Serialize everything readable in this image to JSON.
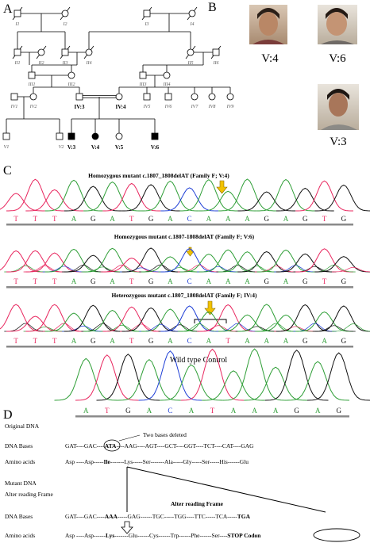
{
  "panel_labels": [
    "A",
    "B",
    "C",
    "D"
  ],
  "pedigree": {
    "generation_1": [
      "I1",
      "I2",
      "I3",
      "I4"
    ],
    "generation_2": [
      "II1",
      "II2",
      "II3",
      "II4",
      "II5",
      "II6"
    ],
    "generation_3": [
      "III1",
      "III2",
      "III3",
      "III4"
    ],
    "generation_4": [
      "IV1",
      "IV2",
      "IV:3",
      "IV:4",
      "IV5",
      "IV6",
      "IV7",
      "IV8",
      "IV9"
    ],
    "generation_5": [
      "V1",
      "V2",
      "V:3",
      "V:4",
      "V:5",
      "V:6"
    ]
  },
  "photos": [
    "V:4",
    "V:6",
    "V:3"
  ],
  "chromatograms": [
    {
      "title": "Homozygous mutant c.1807_1808delAT (Family F; V:4)",
      "bases": [
        "T",
        "T",
        "T",
        "A",
        "G",
        "A",
        "T",
        "G",
        "A",
        "C",
        "A",
        "A",
        "A",
        "G",
        "A",
        "G",
        "T",
        "G"
      ]
    },
    {
      "title": "Homozygous mutant c.1807-1808delAT (Family F; V:6)",
      "bases": [
        "T",
        "T",
        "T",
        "A",
        "G",
        "A",
        "T",
        "G",
        "A",
        "C",
        "A",
        "A",
        "A",
        "G",
        "A",
        "G",
        "T",
        "G"
      ]
    },
    {
      "title": "Heterozygous mutant c.1807_1808delAT (Family F; IV:4)",
      "bases": [
        "T",
        "T",
        "T",
        "A",
        "G",
        "A",
        "T",
        "G",
        "A",
        "C",
        "A",
        "T",
        "A",
        "A",
        "A",
        "G",
        "A",
        "G"
      ]
    },
    {
      "title": "Wild type Control",
      "bases": [
        "A",
        "T",
        "G",
        "A",
        "C",
        "A",
        "T",
        "A",
        "A",
        "A",
        "G",
        "A",
        "G"
      ]
    }
  ],
  "sequence_panel": {
    "original_heading": "Original DNA",
    "deletion_note": "Two bases deleted",
    "original_dna": {
      "label": "DNA Bases",
      "segments": [
        "GAT----GAC----",
        "ATA",
        "----AAG----AGT----GCT----GGT----TCT----CAT----GAG"
      ]
    },
    "original_amino": {
      "label": "Amino acids",
      "segments": [
        "Asp ----Asp-----",
        "Ile",
        "-------Lys-----Ser-------Ala-----Gly-----Ser-----His------Glu"
      ]
    },
    "mutant_heading": "Mutant DNA",
    "frameshift_note": "Alter reading Frame",
    "frameshift_label": "Alter reading Frame",
    "mutant_dna": {
      "label": "DNA Bases",
      "segments": [
        "GAT----GAC----",
        "AAA",
        "-----GAG------TGC-----TGG----TTC-----TCA-----",
        "TGA"
      ]
    },
    "mutant_amino": {
      "label": "Amino acids",
      "segments": [
        "Asp ----Asp------",
        "Lys",
        "-------Glu------Cys------Trp------Phe------Ser----",
        "STOP Codon"
      ]
    }
  }
}
